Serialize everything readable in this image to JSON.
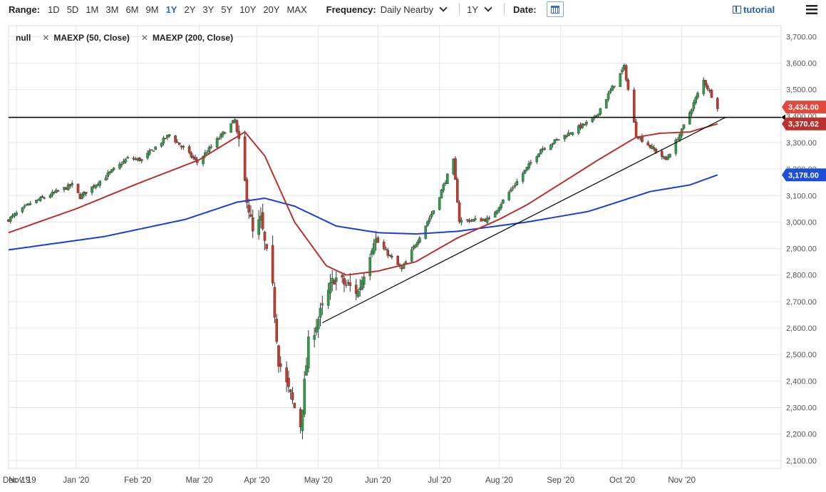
{
  "toolbar": {
    "range_label": "Range:",
    "ranges": [
      "1D",
      "5D",
      "1M",
      "3M",
      "6M",
      "9M",
      "1Y",
      "2Y",
      "3Y",
      "5Y",
      "10Y",
      "20Y",
      "MAX"
    ],
    "active_range": "1Y",
    "frequency_label": "Frequency:",
    "frequency_value": "Daily Nearby",
    "period_value": "1Y",
    "date_label": "Date:",
    "tutorial_label": "tutorial"
  },
  "legend": {
    "series_0": "null",
    "series_1": "MAEXP (50, Close)",
    "series_2": "MAEXP (200, Close)"
  },
  "colors": {
    "up": "#2e9e45",
    "down": "#c63a2b",
    "ma50": "#b8312c",
    "ma200": "#1a3fd4",
    "tag_last": "#e3493a",
    "tag_ma50": "#b8312c",
    "tag_ma200": "#1d4ed8"
  },
  "chart_data": {
    "type": "candlestick",
    "title": "",
    "ylim": [
      2070,
      3725
    ],
    "y_ticks": [
      "3,700.00",
      "3,600.00",
      "3,500.00",
      "3,400.00",
      "3,300.00",
      "3,200.00",
      "3,100.00",
      "3,000.00",
      "2,900.00",
      "2,800.00",
      "2,700.00",
      "2,600.00",
      "2,500.00",
      "2,400.00",
      "2,300.00",
      "2,200.00",
      "2,100.00"
    ],
    "x_ticks": [
      "Nov '19",
      "Dec '19",
      "Jan '20",
      "Feb '20",
      "Mar '20",
      "Apr '20",
      "May '20",
      "Jun '20",
      "Jul '20",
      "Aug '20",
      "Sep '20",
      "Oct '20",
      "Nov '20"
    ],
    "x_range": [
      "2019-10-28",
      "2020-11-20"
    ],
    "close_anchors": [
      [
        "2019-10-28",
        3010
      ],
      [
        "2019-11-08",
        3070
      ],
      [
        "2019-11-29",
        3140
      ],
      [
        "2019-12-03",
        3095
      ],
      [
        "2019-12-27",
        3240
      ],
      [
        "2020-01-03",
        3235
      ],
      [
        "2020-01-17",
        3330
      ],
      [
        "2020-01-31",
        3225
      ],
      [
        "2020-02-19",
        3385
      ],
      [
        "2020-02-28",
        2955
      ],
      [
        "2020-03-03",
        3005
      ],
      [
        "2020-03-09",
        2745
      ],
      [
        "2020-03-12",
        2480
      ],
      [
        "2020-03-16",
        2385
      ],
      [
        "2020-03-23",
        2235
      ],
      [
        "2020-03-27",
        2540
      ],
      [
        "2020-04-09",
        2790
      ],
      [
        "2020-04-21",
        2735
      ],
      [
        "2020-04-29",
        2940
      ],
      [
        "2020-05-13",
        2820
      ],
      [
        "2020-05-29",
        3045
      ],
      [
        "2020-06-08",
        3230
      ],
      [
        "2020-06-11",
        3005
      ],
      [
        "2020-06-26",
        3010
      ],
      [
        "2020-07-22",
        3275
      ],
      [
        "2020-08-18",
        3390
      ],
      [
        "2020-09-02",
        3585
      ],
      [
        "2020-09-08",
        3330
      ],
      [
        "2020-09-23",
        3235
      ],
      [
        "2020-10-01",
        3345
      ],
      [
        "2020-10-12",
        3535
      ],
      [
        "2020-10-19",
        3435
      ]
    ],
    "ma50_anchors": [
      [
        "2019-10-28",
        2960
      ],
      [
        "2019-12-01",
        3050
      ],
      [
        "2020-01-01",
        3145
      ],
      [
        "2020-02-01",
        3235
      ],
      [
        "2020-02-24",
        3340
      ],
      [
        "2020-03-05",
        3250
      ],
      [
        "2020-03-20",
        3000
      ],
      [
        "2020-04-05",
        2835
      ],
      [
        "2020-04-15",
        2800
      ],
      [
        "2020-05-01",
        2815
      ],
      [
        "2020-05-20",
        2850
      ],
      [
        "2020-06-10",
        2940
      ],
      [
        "2020-07-01",
        3010
      ],
      [
        "2020-07-15",
        3065
      ],
      [
        "2020-08-01",
        3145
      ],
      [
        "2020-08-20",
        3235
      ],
      [
        "2020-09-08",
        3320
      ],
      [
        "2020-09-20",
        3335
      ],
      [
        "2020-10-05",
        3340
      ],
      [
        "2020-10-19",
        3370.62
      ]
    ],
    "ma200_anchors": [
      [
        "2019-10-28",
        2895
      ],
      [
        "2019-12-15",
        2945
      ],
      [
        "2020-01-25",
        3010
      ],
      [
        "2020-02-20",
        3075
      ],
      [
        "2020-03-05",
        3090
      ],
      [
        "2020-03-20",
        3060
      ],
      [
        "2020-04-10",
        2985
      ],
      [
        "2020-05-01",
        2960
      ],
      [
        "2020-05-20",
        2955
      ],
      [
        "2020-06-10",
        2965
      ],
      [
        "2020-07-15",
        3000
      ],
      [
        "2020-08-15",
        3040
      ],
      [
        "2020-09-15",
        3115
      ],
      [
        "2020-10-05",
        3140
      ],
      [
        "2020-10-19",
        3178
      ]
    ],
    "horizontal_line": 3395,
    "trendline": [
      [
        "2020-04-03",
        2620
      ],
      [
        "2020-10-23",
        3395
      ]
    ],
    "price_tags": [
      {
        "label": "3,434.00",
        "value": 3434
      },
      {
        "label": "3,370.62",
        "value": 3370.62
      },
      {
        "label": "3,178.00",
        "value": 3178
      }
    ]
  }
}
